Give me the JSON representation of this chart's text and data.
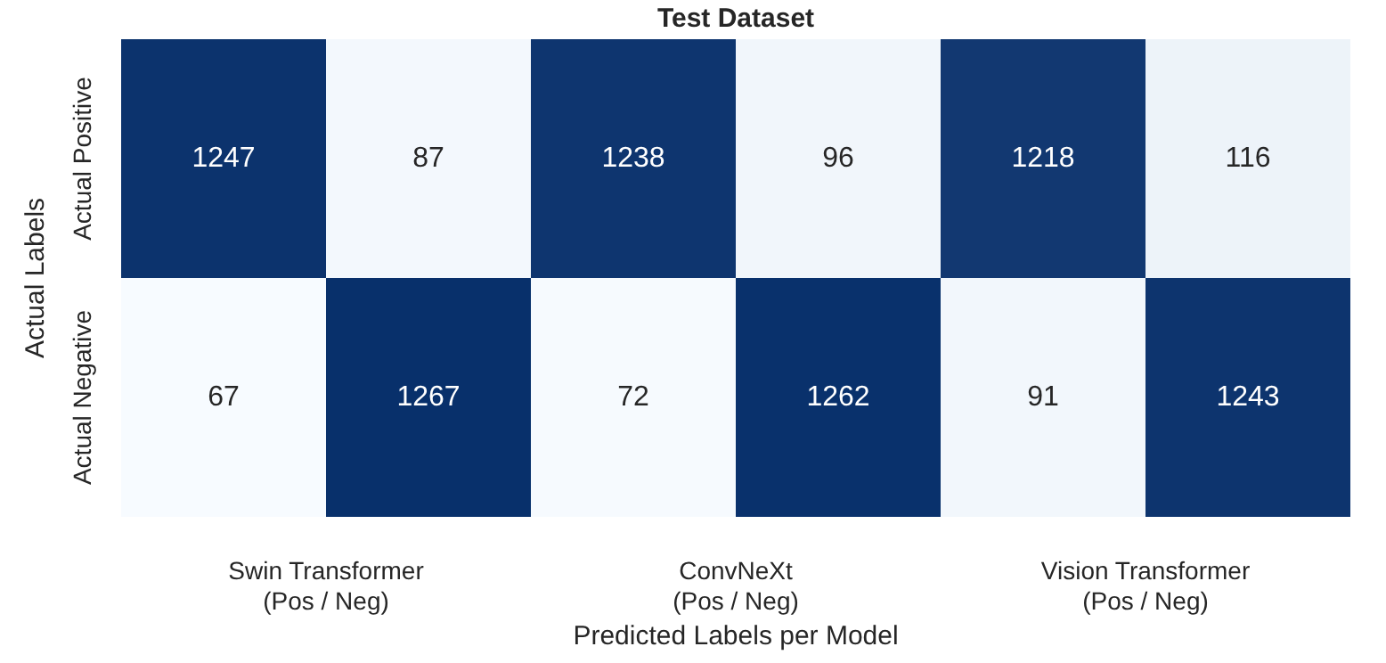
{
  "chart_data": {
    "type": "heatmap",
    "title": "Test Dataset",
    "xlabel": "Predicted Labels per Model",
    "ylabel": "Actual Labels",
    "categories": [
      "Swin Transformer\n(Pos / Neg)",
      null,
      "ConvNeXt\n(Pos / Neg)",
      null,
      "Vision Transformer\n(Pos / Neg)",
      null
    ],
    "y_categories": [
      "Actual Positive",
      "Actual Negative"
    ],
    "cells": [
      [
        1247,
        87,
        1238,
        96,
        1218,
        116
      ],
      [
        67,
        1267,
        72,
        1262,
        91,
        1243
      ]
    ],
    "data_labels": true,
    "legend": false
  }
}
